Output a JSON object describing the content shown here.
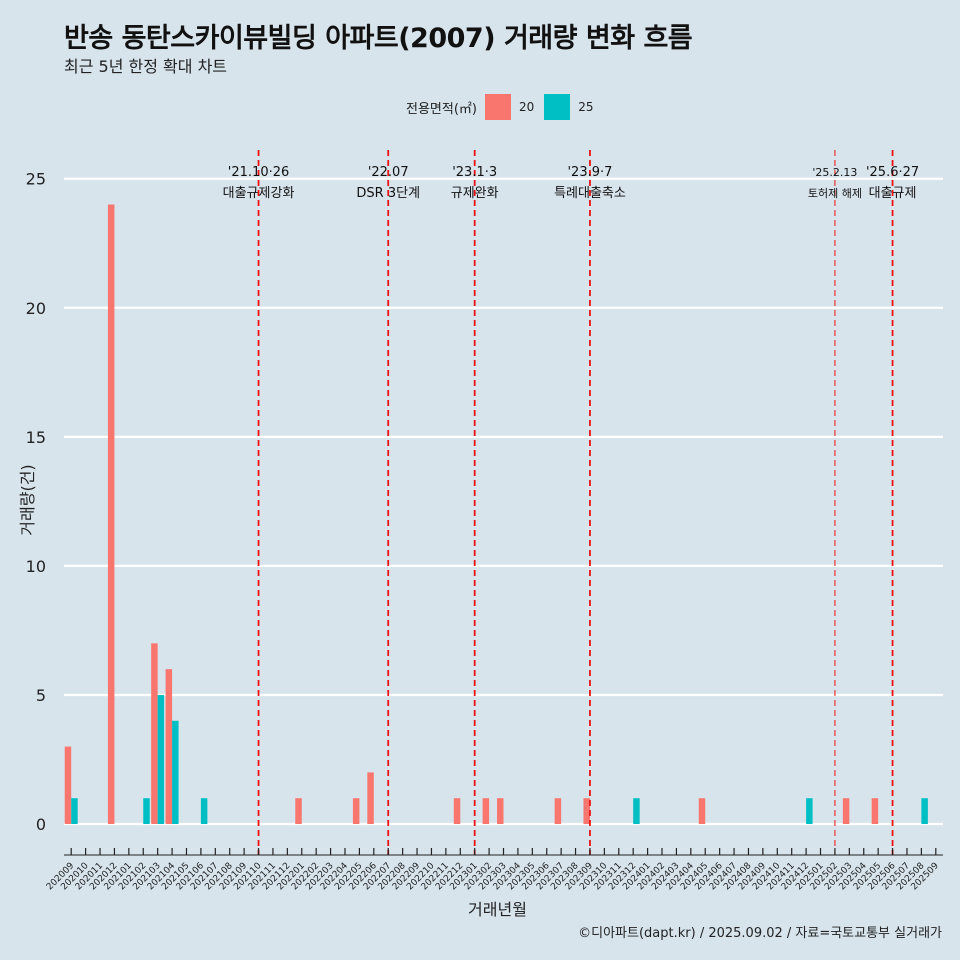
{
  "title": "반송 동탄스카이뷰빌딩 아파트(2007) 거래량 변화 흐름",
  "subtitle": "최근 5년 한정 확대 차트",
  "caption": "©디아파트(dapt.kr) / 2025.09.02 / 자료=국토교통부 실거래가",
  "legend": {
    "title": "전용면적(㎡)",
    "items": [
      {
        "label": "20",
        "color": "#f8766d"
      },
      {
        "label": "25",
        "color": "#00bfc4"
      }
    ]
  },
  "chart_data": {
    "type": "bar",
    "title": "반송 동탄스카이뷰빌딩 아파트(2007) 거래량 변화 흐름",
    "xlabel": "거래년월",
    "ylabel": "거래량(건)",
    "ylim": [
      -1.2,
      26.5
    ],
    "yticks": [
      0,
      5,
      10,
      15,
      20,
      25
    ],
    "categories": [
      "202009",
      "202010",
      "202011",
      "202012",
      "202101",
      "202102",
      "202103",
      "202104",
      "202105",
      "202106",
      "202107",
      "202108",
      "202109",
      "202110",
      "202111",
      "202112",
      "202201",
      "202202",
      "202203",
      "202204",
      "202205",
      "202206",
      "202207",
      "202208",
      "202209",
      "202210",
      "202211",
      "202212",
      "202301",
      "202302",
      "202303",
      "202304",
      "202305",
      "202306",
      "202307",
      "202308",
      "202309",
      "202310",
      "202311",
      "202312",
      "202401",
      "202402",
      "202403",
      "202404",
      "202405",
      "202406",
      "202407",
      "202408",
      "202409",
      "202410",
      "202411",
      "202412",
      "202501",
      "202502",
      "202503",
      "202504",
      "202505",
      "202506",
      "202507",
      "202508",
      "202509"
    ],
    "series": [
      {
        "name": "20",
        "color": "#f8766d",
        "values": [
          3,
          0,
          0,
          24,
          0,
          0,
          7,
          6,
          0,
          0,
          0,
          0,
          0,
          0,
          0,
          0,
          1,
          0,
          0,
          0,
          1,
          2,
          0,
          0,
          0,
          0,
          0,
          1,
          0,
          1,
          1,
          0,
          0,
          0,
          1,
          0,
          1,
          0,
          0,
          0,
          0,
          0,
          0,
          0,
          1,
          0,
          0,
          0,
          0,
          0,
          0,
          0,
          0,
          0,
          1,
          0,
          1,
          0,
          0,
          0,
          0
        ]
      },
      {
        "name": "25",
        "color": "#00bfc4",
        "values": [
          1,
          0,
          0,
          0,
          0,
          1,
          5,
          4,
          0,
          1,
          0,
          0,
          0,
          0,
          0,
          0,
          0,
          0,
          0,
          0,
          0,
          0,
          0,
          0,
          0,
          0,
          0,
          0,
          0,
          0,
          0,
          0,
          0,
          0,
          0,
          0,
          0,
          0,
          0,
          1,
          0,
          0,
          0,
          0,
          0,
          0,
          0,
          0,
          0,
          0,
          0,
          1,
          0,
          0,
          0,
          0,
          0,
          0,
          0,
          1,
          0
        ]
      }
    ],
    "annotations": [
      {
        "month": "202110",
        "date": "'21.10·26",
        "label": "대출규제강화",
        "style": "bold"
      },
      {
        "month": "202207",
        "date": "'22.07",
        "label": "DSR 3단계",
        "style": "bold"
      },
      {
        "month": "202301",
        "date": "'23.1·3",
        "label": "규제완화",
        "style": "bold"
      },
      {
        "month": "202309",
        "date": "'23.9·7",
        "label": "특례대출축소",
        "style": "bold"
      },
      {
        "month": "202502",
        "date": "'25.2.13",
        "label": "토허제 해제",
        "style": "thin"
      },
      {
        "month": "202506",
        "date": "'25.6·27",
        "label": "대출규제",
        "style": "bold"
      }
    ]
  }
}
